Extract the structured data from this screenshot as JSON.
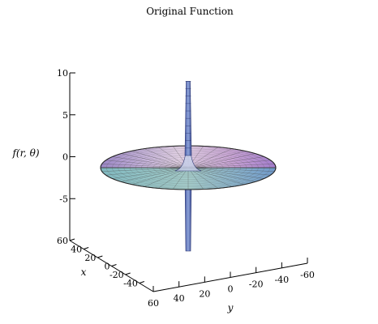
{
  "chart_data": {
    "type": "surface3d",
    "title": "Original Function",
    "zlabel": "f(r, θ)",
    "xlabel": "x",
    "ylabel": "y",
    "zticks": [
      "10",
      "5",
      "0",
      "-5"
    ],
    "xticks": [
      "60",
      "40",
      "20",
      "0",
      "-20",
      "-40"
    ],
    "yticks": [
      "60",
      "40",
      "20",
      "0",
      "-20",
      "-40",
      "-60"
    ],
    "zlim": [
      -10,
      10
    ],
    "xlim": [
      -60,
      60
    ],
    "ylim": [
      -60,
      60
    ],
    "surface": {
      "shape": "disk with central spike",
      "r_max": 60,
      "spike_top": 9,
      "spike_bottom": -10,
      "colors": [
        "#a77fc6",
        "#e0bde0",
        "#7fbcc0",
        "#5e8fc0"
      ]
    }
  }
}
